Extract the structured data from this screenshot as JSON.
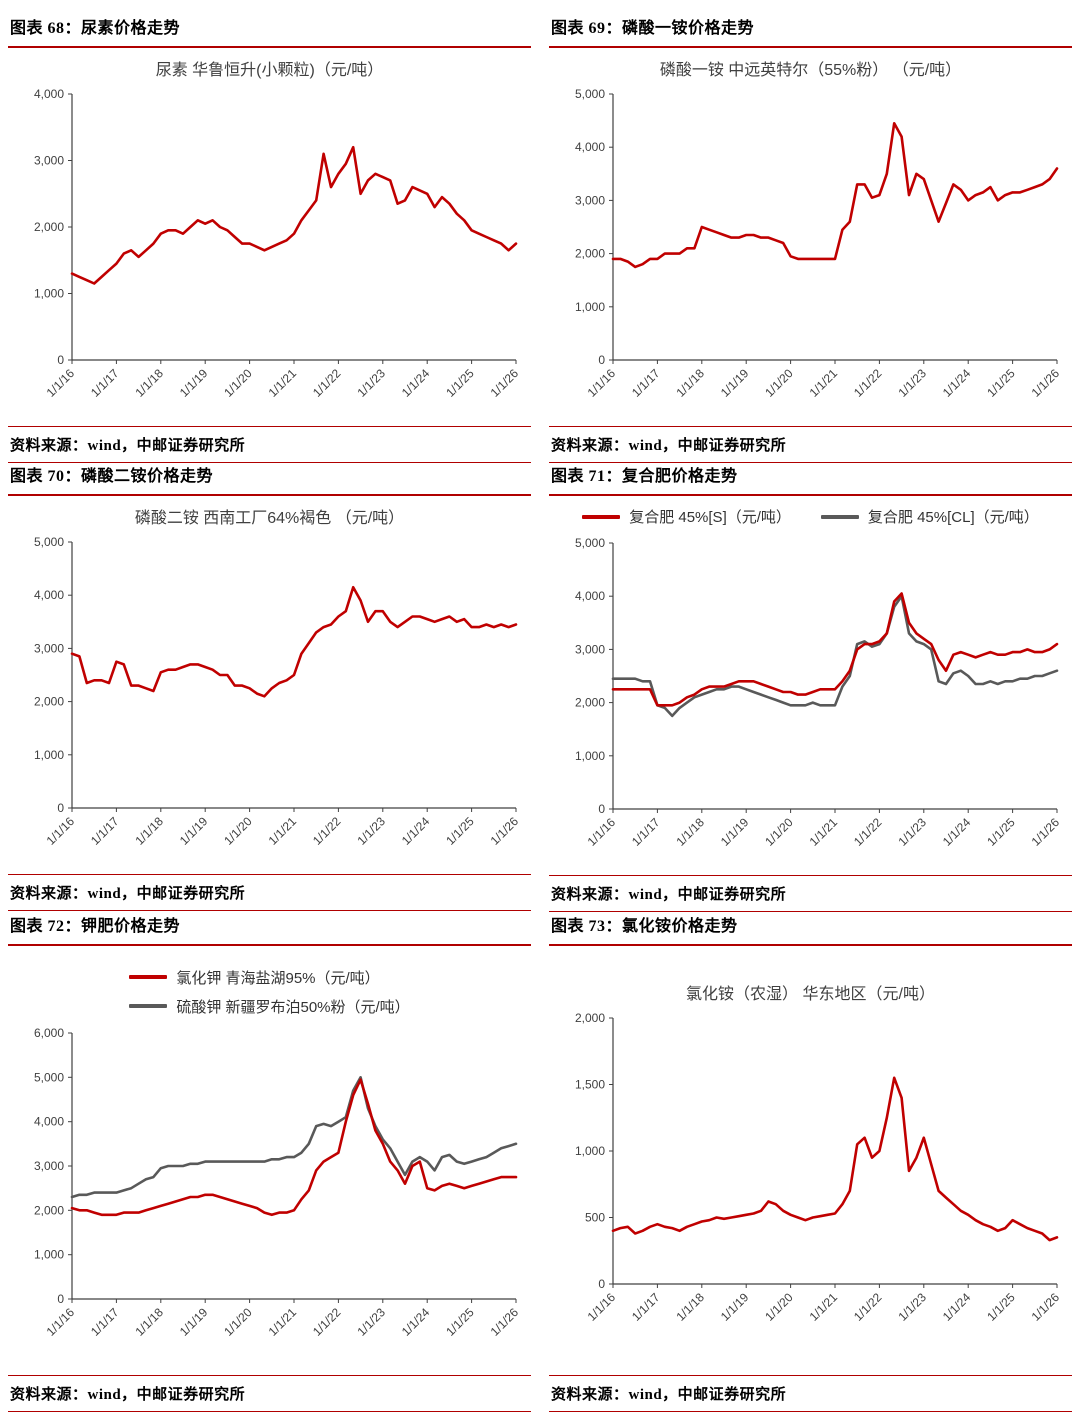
{
  "colors": {
    "red": "#c00000",
    "gray": "#595959",
    "rule": "#b00000",
    "axis": "#404040"
  },
  "source_text": "资料来源：wind，中邮证券研究所",
  "x_tick_labels": [
    "1/1/16",
    "1/1/17",
    "1/1/18",
    "1/1/19",
    "1/1/20",
    "1/1/21",
    "1/1/22",
    "1/1/23",
    "1/1/24",
    "1/1/25",
    "1/1/26"
  ],
  "figures": [
    {
      "caption": "图表 68：尿素价格走势",
      "source": "资料来源：wind，中邮证券研究所"
    },
    {
      "caption": "图表 69：磷酸一铵价格走势",
      "source": "资料来源：wind，中邮证券研究所"
    },
    {
      "caption": "图表 70：磷酸二铵价格走势",
      "source": "资料来源：wind，中邮证券研究所"
    },
    {
      "caption": "图表 71：复合肥价格走势",
      "source": "资料来源：wind，中邮证券研究所"
    },
    {
      "caption": "图表 72：钾肥价格走势",
      "source": "资料来源：wind，中邮证券研究所"
    },
    {
      "caption": "图表 73：氯化铵价格走势",
      "source": "资料来源：wind，中邮证券研究所"
    }
  ],
  "chart_data": [
    {
      "type": "line",
      "title": "尿素 华鲁恒升(小颗粒)（元/吨）",
      "unit": "元/吨",
      "ylim": [
        0,
        4000
      ],
      "ystep": 1000,
      "grid": false,
      "x_start": "1/1/16",
      "x_end": "1/1/26",
      "x_interval_months": 2,
      "series": [
        {
          "name": "尿素 华鲁恒升(小颗粒)",
          "color_key": "red",
          "values": [
            1300,
            1250,
            1200,
            1150,
            1250,
            1350,
            1450,
            1600,
            1650,
            1550,
            1650,
            1750,
            1900,
            1950,
            1950,
            1900,
            2000,
            2100,
            2050,
            2100,
            2000,
            1950,
            1850,
            1750,
            1750,
            1700,
            1650,
            1700,
            1750,
            1800,
            1900,
            2100,
            2250,
            2400,
            3100,
            2600,
            2800,
            2950,
            3200,
            2500,
            2700,
            2800,
            2750,
            2700,
            2350,
            2400,
            2600,
            2550,
            2500,
            2300,
            2450,
            2350,
            2200,
            2100,
            1950,
            1900,
            1850,
            1800,
            1750,
            1650,
            1750
          ]
        }
      ]
    },
    {
      "type": "line",
      "title": "磷酸一铵 中远英特尔（55%粉） （元/吨）",
      "unit": "元/吨",
      "ylim": [
        0,
        5000
      ],
      "ystep": 1000,
      "grid": false,
      "x_start": "1/1/16",
      "x_end": "1/1/26",
      "x_interval_months": 2,
      "series": [
        {
          "name": "磷酸一铵 中远英特尔（55%粉）",
          "color_key": "red",
          "values": [
            1900,
            1900,
            1850,
            1750,
            1800,
            1900,
            1900,
            2000,
            2000,
            2000,
            2100,
            2100,
            2500,
            2450,
            2400,
            2350,
            2300,
            2300,
            2350,
            2350,
            2300,
            2300,
            2250,
            2200,
            1950,
            1900,
            1900,
            1900,
            1900,
            1900,
            1900,
            2450,
            2600,
            3300,
            3300,
            3050,
            3100,
            3500,
            4450,
            4200,
            3100,
            3500,
            3400,
            3000,
            2600,
            2950,
            3300,
            3200,
            3000,
            3100,
            3150,
            3250,
            3000,
            3100,
            3150,
            3150,
            3200,
            3250,
            3300,
            3400,
            3600
          ]
        }
      ]
    },
    {
      "type": "line",
      "title": "磷酸二铵 西南工厂64%褐色 （元/吨）",
      "unit": "元/吨",
      "ylim": [
        0,
        5000
      ],
      "ystep": 1000,
      "grid": false,
      "x_start": "1/1/16",
      "x_end": "1/1/26",
      "x_interval_months": 2,
      "series": [
        {
          "name": "磷酸二铵 西南工厂64%褐色",
          "color_key": "red",
          "values": [
            2900,
            2850,
            2350,
            2400,
            2400,
            2350,
            2750,
            2700,
            2300,
            2300,
            2250,
            2200,
            2550,
            2600,
            2600,
            2650,
            2700,
            2700,
            2650,
            2600,
            2500,
            2500,
            2300,
            2300,
            2250,
            2150,
            2100,
            2250,
            2350,
            2400,
            2500,
            2900,
            3100,
            3300,
            3400,
            3450,
            3600,
            3700,
            4150,
            3900,
            3500,
            3700,
            3700,
            3500,
            3400,
            3500,
            3600,
            3600,
            3550,
            3500,
            3550,
            3600,
            3500,
            3550,
            3400,
            3400,
            3450,
            3400,
            3450,
            3400,
            3450
          ]
        }
      ]
    },
    {
      "type": "line",
      "unit": "元/吨",
      "ylim": [
        0,
        5000
      ],
      "ystep": 1000,
      "grid": false,
      "x_start": "1/1/16",
      "x_end": "1/1/26",
      "x_interval_months": 2,
      "legend": {
        "layout": "row",
        "entries": [
          {
            "label": "复合肥 45%[S]（元/吨）",
            "color_key": "red"
          },
          {
            "label": "复合肥 45%[CL]（元/吨）",
            "color_key": "gray"
          }
        ]
      },
      "series": [
        {
          "name": "复合肥 45%[S]",
          "color_key": "red",
          "values": [
            2250,
            2250,
            2250,
            2250,
            2250,
            2250,
            1950,
            1950,
            1950,
            2000,
            2100,
            2150,
            2250,
            2300,
            2300,
            2300,
            2350,
            2400,
            2400,
            2400,
            2350,
            2300,
            2250,
            2200,
            2200,
            2150,
            2150,
            2200,
            2250,
            2250,
            2250,
            2400,
            2600,
            3000,
            3100,
            3100,
            3150,
            3300,
            3900,
            4050,
            3500,
            3300,
            3200,
            3100,
            2800,
            2600,
            2900,
            2950,
            2900,
            2850,
            2900,
            2950,
            2900,
            2900,
            2950,
            2950,
            3000,
            2950,
            2950,
            3000,
            3100
          ]
        },
        {
          "name": "复合肥 45%[CL]",
          "color_key": "gray",
          "values": [
            2450,
            2450,
            2450,
            2450,
            2400,
            2400,
            1950,
            1900,
            1750,
            1900,
            2000,
            2100,
            2150,
            2200,
            2250,
            2250,
            2300,
            2300,
            2250,
            2200,
            2150,
            2100,
            2050,
            2000,
            1950,
            1950,
            1950,
            2000,
            1950,
            1950,
            1950,
            2300,
            2500,
            3100,
            3150,
            3050,
            3100,
            3300,
            3800,
            4000,
            3300,
            3150,
            3100,
            3000,
            2400,
            2350,
            2550,
            2600,
            2500,
            2350,
            2350,
            2400,
            2350,
            2400,
            2400,
            2450,
            2450,
            2500,
            2500,
            2550,
            2600
          ]
        }
      ]
    },
    {
      "type": "line",
      "unit": "元/吨",
      "ylim": [
        0,
        6000
      ],
      "ystep": 1000,
      "grid": false,
      "x_start": "1/1/16",
      "x_end": "1/1/26",
      "x_interval_months": 2,
      "legend": {
        "layout": "stack",
        "entries": [
          {
            "label": "氯化钾 青海盐湖95%（元/吨）",
            "color_key": "red"
          },
          {
            "label": "硫酸钾 新疆罗布泊50%粉（元/吨）",
            "color_key": "gray"
          }
        ]
      },
      "series": [
        {
          "name": "氯化钾 青海盐湖95%",
          "color_key": "red",
          "values": [
            2050,
            2000,
            2000,
            1950,
            1900,
            1900,
            1900,
            1950,
            1950,
            1950,
            2000,
            2050,
            2100,
            2150,
            2200,
            2250,
            2300,
            2300,
            2350,
            2350,
            2300,
            2250,
            2200,
            2150,
            2100,
            2050,
            1950,
            1900,
            1950,
            1950,
            2000,
            2250,
            2450,
            2900,
            3100,
            3200,
            3300,
            4000,
            4600,
            4950,
            4400,
            3800,
            3500,
            3100,
            2900,
            2600,
            3000,
            3100,
            2500,
            2450,
            2550,
            2600,
            2550,
            2500,
            2550,
            2600,
            2650,
            2700,
            2750,
            2750,
            2750
          ]
        },
        {
          "name": "硫酸钾 新疆罗布泊50%粉",
          "color_key": "gray",
          "values": [
            2300,
            2350,
            2350,
            2400,
            2400,
            2400,
            2400,
            2450,
            2500,
            2600,
            2700,
            2750,
            2950,
            3000,
            3000,
            3000,
            3050,
            3050,
            3100,
            3100,
            3100,
            3100,
            3100,
            3100,
            3100,
            3100,
            3100,
            3150,
            3150,
            3200,
            3200,
            3300,
            3500,
            3900,
            3950,
            3900,
            4000,
            4100,
            4700,
            5000,
            4300,
            3900,
            3600,
            3400,
            3100,
            2800,
            3100,
            3200,
            3100,
            2900,
            3200,
            3250,
            3100,
            3050,
            3100,
            3150,
            3200,
            3300,
            3400,
            3450,
            3500
          ]
        }
      ]
    },
    {
      "type": "line",
      "title": "氯化铵（农湿） 华东地区（元/吨）",
      "unit": "元/吨",
      "ylim": [
        0,
        2000
      ],
      "ystep": 500,
      "grid": false,
      "x_start": "1/1/16",
      "x_end": "1/1/26",
      "x_interval_months": 2,
      "series": [
        {
          "name": "氯化铵（农湿） 华东地区",
          "color_key": "red",
          "values": [
            400,
            420,
            430,
            380,
            400,
            430,
            450,
            430,
            420,
            400,
            430,
            450,
            470,
            480,
            500,
            490,
            500,
            510,
            520,
            530,
            550,
            620,
            600,
            550,
            520,
            500,
            480,
            500,
            510,
            520,
            530,
            600,
            700,
            1050,
            1100,
            950,
            1000,
            1250,
            1550,
            1400,
            850,
            950,
            1100,
            900,
            700,
            650,
            600,
            550,
            520,
            480,
            450,
            430,
            400,
            420,
            480,
            450,
            420,
            400,
            380,
            330,
            350
          ]
        }
      ]
    }
  ]
}
